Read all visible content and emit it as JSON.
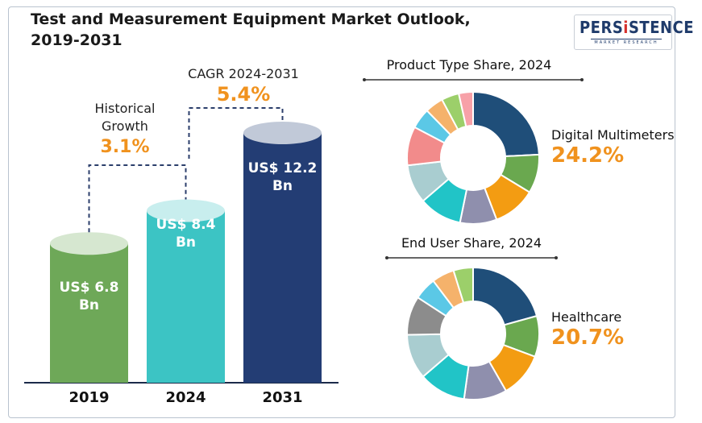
{
  "title_line1": "Test and Measurement Equipment Market Outlook,",
  "title_line2": "2019-2031",
  "logo": {
    "main": "PERSiSTENCE",
    "sub": "MARKET RESEARCH"
  },
  "colors": {
    "bar_2019": "#6ea858",
    "bar_2024": "#3cc4c4",
    "bar_2031": "#233d74",
    "accent": "#f0921e"
  },
  "cagr": {
    "label": "CAGR 2024-2031",
    "value": "5.4%"
  },
  "historical": {
    "label_line1": "Historical",
    "label_line2": "Growth",
    "value": "3.1%"
  },
  "chart_data": [
    {
      "type": "bar",
      "title": "",
      "categories": [
        "2019",
        "2024",
        "2031"
      ],
      "values": [
        6.8,
        8.4,
        12.2
      ],
      "value_labels": [
        {
          "line1": "US$ 6.8",
          "line2": "Bn"
        },
        {
          "line1": "US$ 8.4",
          "line2": "Bn"
        },
        {
          "line1": "US$ 12.2",
          "line2": "Bn"
        }
      ],
      "unit": "US$ Bn",
      "ylim": [
        0,
        12.2
      ],
      "grid": false
    },
    {
      "type": "pie",
      "title": "Product Type Share, 2024",
      "highlight": {
        "label": "Digital Multimeters",
        "value": 24.2,
        "display": "24.2%"
      },
      "slices": [
        {
          "value": 24.2,
          "color": "#1f4e79"
        },
        {
          "value": 9.5,
          "color": "#6aa84f"
        },
        {
          "value": 10.5,
          "color": "#f39c12"
        },
        {
          "value": 9.0,
          "color": "#8f8fad"
        },
        {
          "value": 10.5,
          "color": "#21c4c7"
        },
        {
          "value": 9.5,
          "color": "#a9cdd0"
        },
        {
          "value": 9.5,
          "color": "#f28b8b"
        },
        {
          "value": 5.0,
          "color": "#5bc8e6"
        },
        {
          "value": 4.5,
          "color": "#f5b26b"
        },
        {
          "value": 4.3,
          "color": "#9ccf6a"
        },
        {
          "value": 3.5,
          "color": "#f7a1a8"
        }
      ]
    },
    {
      "type": "pie",
      "title": "End User Share, 2024",
      "highlight": {
        "label": "Healthcare",
        "value": 20.7,
        "display": "20.7%"
      },
      "slices": [
        {
          "value": 20.7,
          "color": "#1f4e79"
        },
        {
          "value": 10.0,
          "color": "#6aa84f"
        },
        {
          "value": 11.0,
          "color": "#f39c12"
        },
        {
          "value": 10.5,
          "color": "#8f8fad"
        },
        {
          "value": 11.5,
          "color": "#21c4c7"
        },
        {
          "value": 11.0,
          "color": "#a9cdd0"
        },
        {
          "value": 9.5,
          "color": "#8c8c8c"
        },
        {
          "value": 5.5,
          "color": "#5bc8e6"
        },
        {
          "value": 5.5,
          "color": "#f5b26b"
        },
        {
          "value": 4.8,
          "color": "#9ccf6a"
        }
      ]
    }
  ]
}
